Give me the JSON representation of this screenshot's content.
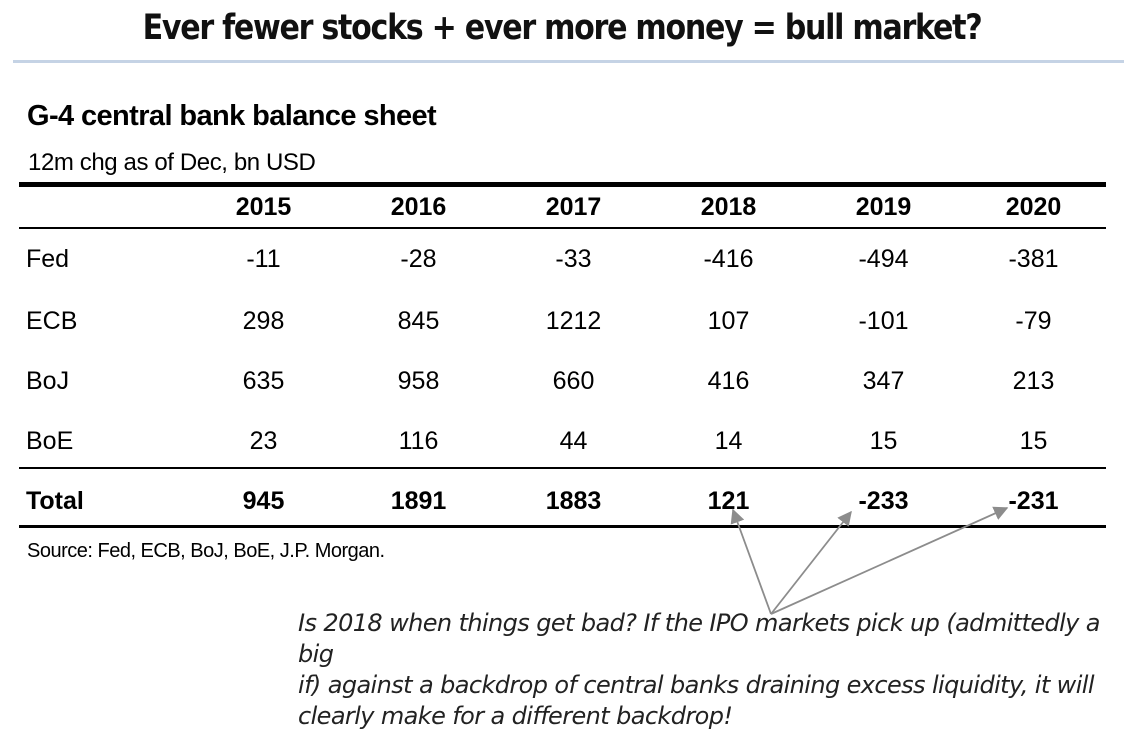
{
  "header": {
    "title": "Ever fewer stocks + ever more money = bull market?"
  },
  "chart_data": {
    "type": "table",
    "title": "G-4 central bank balance sheet",
    "subtitle": "12m chg as of Dec, bn USD",
    "columns": [
      "2015",
      "2016",
      "2017",
      "2018",
      "2019",
      "2020"
    ],
    "rows": [
      {
        "label": "Fed",
        "values": [
          "-11",
          "-28",
          "-33",
          "-416",
          "-494",
          "-381"
        ]
      },
      {
        "label": "ECB",
        "values": [
          "298",
          "845",
          "1212",
          "107",
          "-101",
          "-79"
        ]
      },
      {
        "label": "BoJ",
        "values": [
          "635",
          "958",
          "660",
          "416",
          "347",
          "213"
        ]
      },
      {
        "label": "BoE",
        "values": [
          "23",
          "116",
          "44",
          "14",
          "15",
          "15"
        ]
      }
    ],
    "total": {
      "label": "Total",
      "values": [
        "945",
        "1891",
        "1883",
        "121",
        "-233",
        "-231"
      ]
    },
    "source": "Source: Fed, ECB, BoJ, BoE, J.P. Morgan."
  },
  "annotation": {
    "lines": [
      "Is 2018 when things get bad? If the IPO markets pick up (admittedly a big",
      "if) against a backdrop of central banks draining excess liquidity, it will",
      "clearly make for a different backdrop!"
    ],
    "arrow_color": "#8c8c8c"
  }
}
